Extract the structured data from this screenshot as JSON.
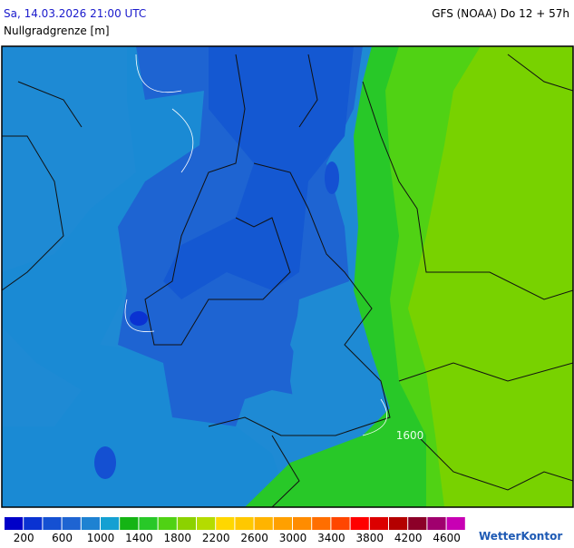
{
  "header": {
    "timestamp": "Sa, 14.03.2026 21:00 UTC",
    "model": "GFS (NOAA) Do 12 + 57h",
    "parameter": "Nullgradgrenze [m]"
  },
  "map": {
    "contour_label": "1600"
  },
  "legend": {
    "labels": [
      "200",
      "600",
      "1000",
      "1400",
      "1800",
      "2200",
      "2600",
      "3000",
      "3400",
      "3800",
      "4200",
      "4600"
    ],
    "colors": [
      "#0000c8",
      "#0a32d2",
      "#1450d2",
      "#1e64d2",
      "#1e82d2",
      "#14a0d2",
      "#14b414",
      "#28c828",
      "#50d214",
      "#8cd200",
      "#b4dc00",
      "#ffd700",
      "#ffc800",
      "#ffb400",
      "#ffa000",
      "#ff8c00",
      "#ff6e00",
      "#ff4600",
      "#ff0000",
      "#dc0000",
      "#b40000",
      "#8c0028",
      "#a0006e",
      "#c800b4"
    ]
  },
  "brand": "WetterKontor"
}
